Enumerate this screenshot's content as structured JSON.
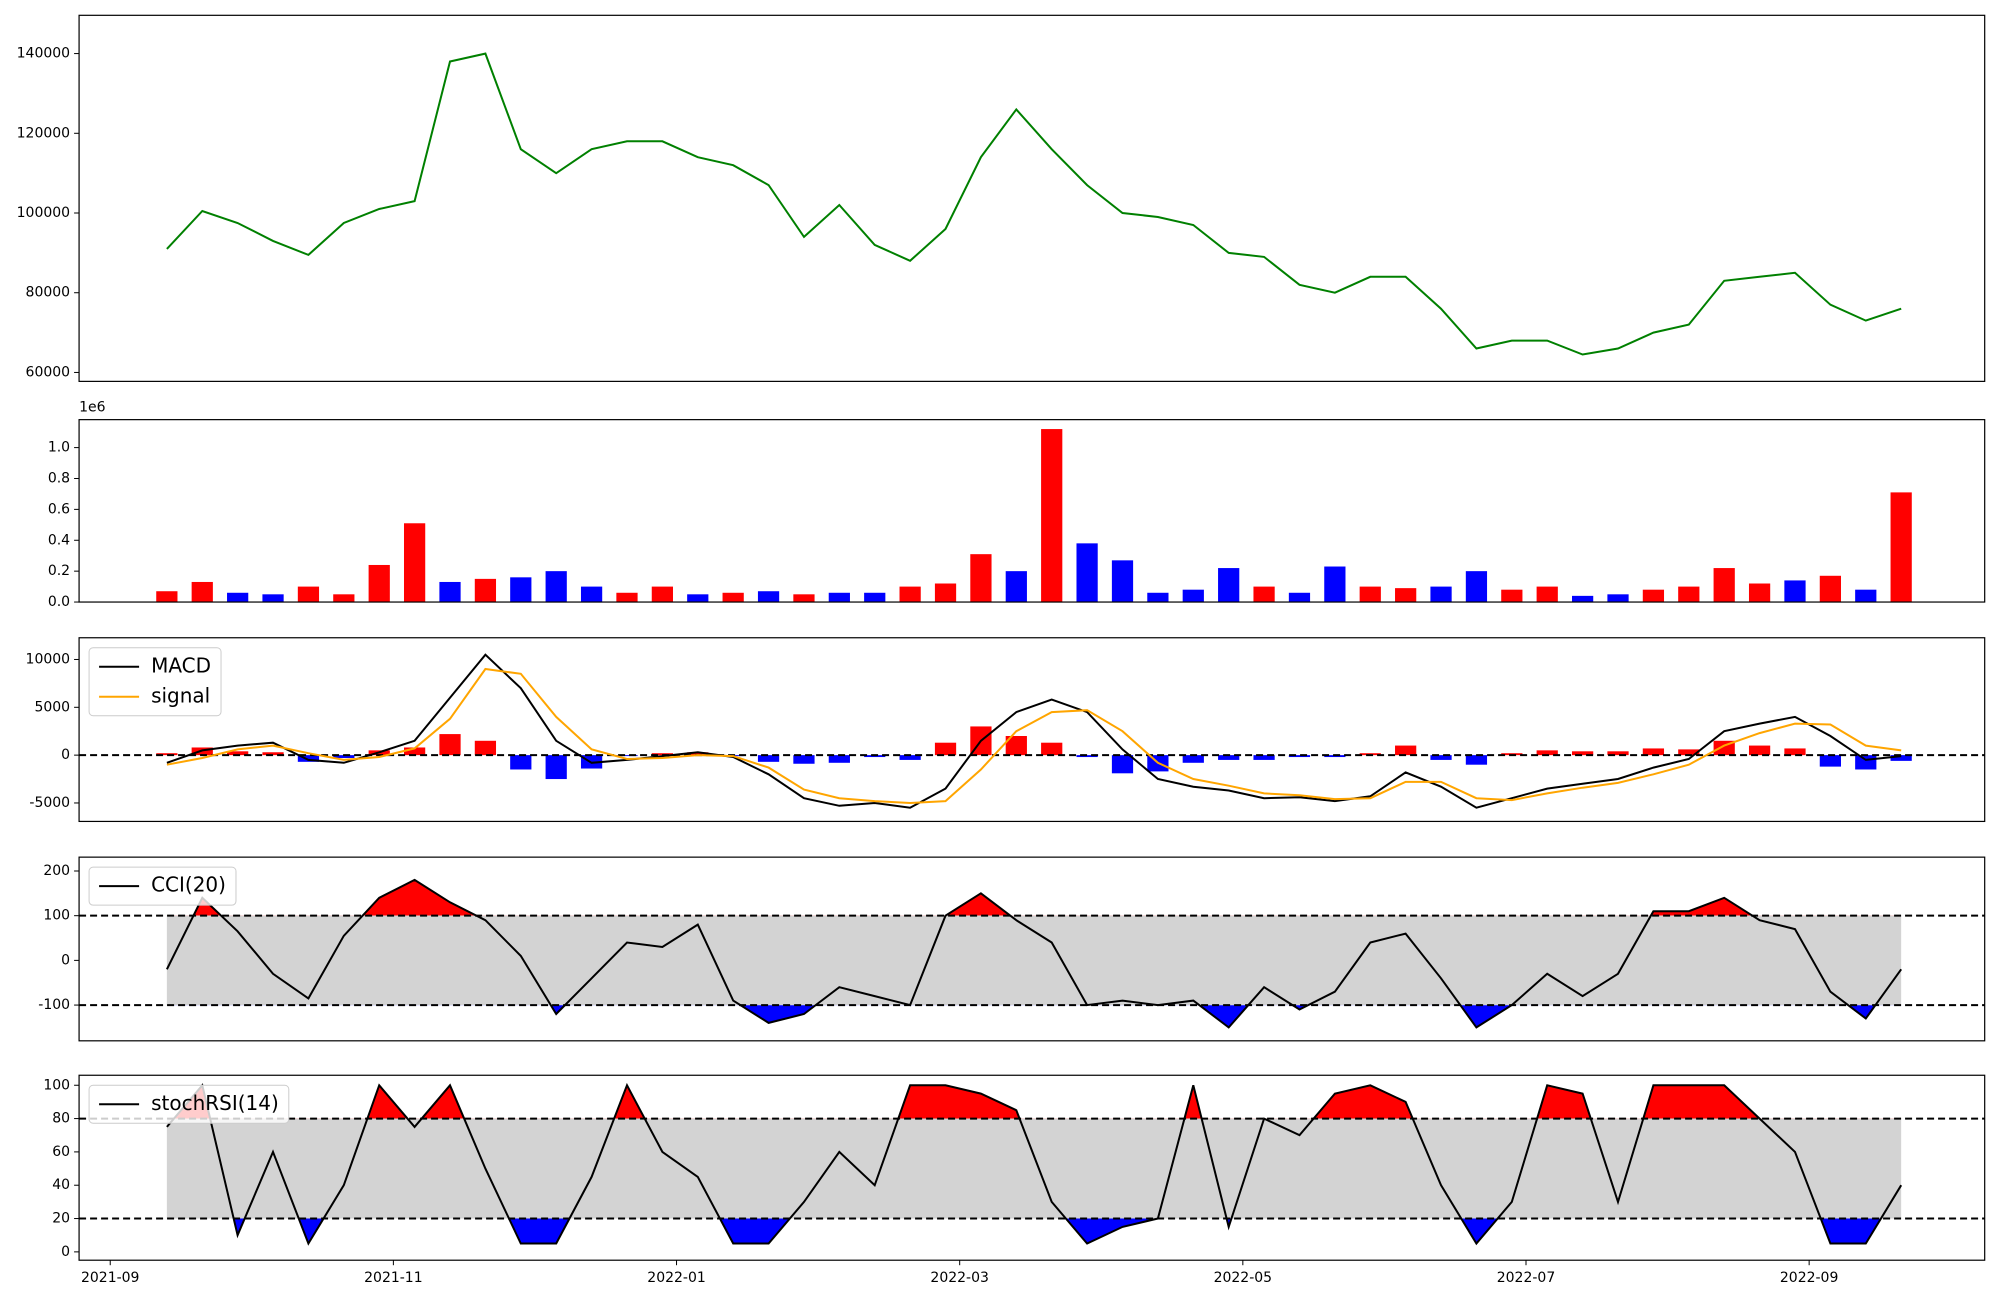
{
  "chart_data": [
    {
      "type": "line",
      "color": "#008000",
      "x": [
        0.4,
        0.65,
        0.9,
        1.15,
        1.4,
        1.65,
        1.9,
        2.15,
        2.4,
        2.65,
        2.9,
        3.15,
        3.4,
        3.65,
        3.9,
        4.15,
        4.4,
        4.65,
        4.9,
        5.15,
        5.4,
        5.65,
        5.9,
        6.15,
        6.4,
        6.65,
        6.9,
        7.15,
        7.4,
        7.65,
        7.9,
        8.15,
        8.4,
        8.65,
        8.9,
        9.15,
        9.4,
        9.65,
        9.9,
        10.15,
        10.4,
        10.65,
        10.9,
        11.15,
        11.4,
        11.65,
        11.9,
        12.15,
        12.4,
        12.65
      ],
      "values": [
        91000,
        100500,
        97500,
        93000,
        89500,
        97500,
        101000,
        103000,
        138000,
        140000,
        116000,
        110000,
        116000,
        118000,
        118000,
        114000,
        112000,
        107000,
        94000,
        102000,
        92000,
        88000,
        96000,
        114000,
        126000,
        116000,
        107000,
        100000,
        99000,
        97000,
        90000,
        89000,
        82000,
        80000,
        84000,
        84000,
        76000,
        66000,
        68000,
        68000,
        64500,
        66000,
        70000,
        72000,
        83000,
        84000,
        85000,
        77000,
        73000,
        76000
      ],
      "xlim": [
        -0.22,
        13.24
      ],
      "ylim": [
        57760,
        149600
      ],
      "yticks": [
        60000,
        80000,
        100000,
        120000,
        140000
      ]
    },
    {
      "type": "bar",
      "y_offset_label": "1e6",
      "x": [
        0.4,
        0.65,
        0.9,
        1.15,
        1.4,
        1.65,
        1.9,
        2.15,
        2.4,
        2.65,
        2.9,
        3.15,
        3.4,
        3.65,
        3.9,
        4.15,
        4.4,
        4.65,
        4.9,
        5.15,
        5.4,
        5.65,
        5.9,
        6.15,
        6.4,
        6.65,
        6.9,
        7.15,
        7.4,
        7.65,
        7.9,
        8.15,
        8.4,
        8.65,
        8.9,
        9.15,
        9.4,
        9.65,
        9.9,
        10.15,
        10.4,
        10.65,
        10.9,
        11.15,
        11.4,
        11.65,
        11.9,
        12.15,
        12.4,
        12.65
      ],
      "values": [
        70000,
        130000,
        60000,
        50000,
        100000,
        50000,
        240000,
        510000,
        130000,
        150000,
        160000,
        200000,
        100000,
        60000,
        100000,
        50000,
        60000,
        70000,
        50000,
        60000,
        60000,
        100000,
        120000,
        310000,
        200000,
        1120000,
        380000,
        270000,
        60000,
        80000,
        220000,
        100000,
        60000,
        230000,
        100000,
        90000,
        100000,
        200000,
        80000,
        100000,
        40000,
        50000,
        80000,
        100000,
        220000,
        120000,
        140000,
        170000,
        80000,
        710000
      ],
      "colors": [
        "#ff0000",
        "#ff0000",
        "#0000ff",
        "#0000ff",
        "#ff0000",
        "#ff0000",
        "#ff0000",
        "#ff0000",
        "#0000ff",
        "#ff0000",
        "#0000ff",
        "#0000ff",
        "#0000ff",
        "#ff0000",
        "#ff0000",
        "#0000ff",
        "#ff0000",
        "#0000ff",
        "#ff0000",
        "#0000ff",
        "#0000ff",
        "#ff0000",
        "#ff0000",
        "#ff0000",
        "#0000ff",
        "#ff0000",
        "#0000ff",
        "#0000ff",
        "#0000ff",
        "#0000ff",
        "#0000ff",
        "#ff0000",
        "#0000ff",
        "#0000ff",
        "#ff0000",
        "#ff0000",
        "#0000ff",
        "#0000ff",
        "#ff0000",
        "#ff0000",
        "#0000ff",
        "#0000ff",
        "#ff0000",
        "#ff0000",
        "#ff0000",
        "#ff0000",
        "#0000ff",
        "#ff0000",
        "#0000ff",
        "#ff0000"
      ],
      "xlim": [
        -0.22,
        13.24
      ],
      "ylim": [
        0,
        1181000
      ],
      "yticks": [
        {
          "value": 0,
          "label": "0.0"
        },
        {
          "value": 200000,
          "label": "0.2"
        },
        {
          "value": 400000,
          "label": "0.4"
        },
        {
          "value": 600000,
          "label": "0.6"
        },
        {
          "value": 800000,
          "label": "0.8"
        },
        {
          "value": 1000000,
          "label": "1.0"
        }
      ]
    },
    {
      "type": "macd",
      "legend": "upper left",
      "reference_line": 0,
      "x": [
        0.4,
        0.65,
        0.9,
        1.15,
        1.4,
        1.65,
        1.9,
        2.15,
        2.4,
        2.65,
        2.9,
        3.15,
        3.4,
        3.65,
        3.9,
        4.15,
        4.4,
        4.65,
        4.9,
        5.15,
        5.4,
        5.65,
        5.9,
        6.15,
        6.4,
        6.65,
        6.9,
        7.15,
        7.4,
        7.65,
        7.9,
        8.15,
        8.4,
        8.65,
        8.9,
        9.15,
        9.4,
        9.65,
        9.9,
        10.15,
        10.4,
        10.65,
        10.9,
        11.15,
        11.4,
        11.65,
        11.9,
        12.15,
        12.4,
        12.65
      ],
      "series": [
        {
          "name": "MACD",
          "color": "#000000",
          "values": [
            -800,
            500,
            1000,
            1300,
            -500,
            -800,
            300,
            1500,
            6000,
            10500,
            7000,
            1500,
            -800,
            -500,
            -100,
            300,
            -200,
            -2000,
            -4500,
            -5300,
            -5000,
            -5500,
            -3500,
            1500,
            4500,
            5800,
            4500,
            600,
            -2500,
            -3300,
            -3700,
            -4500,
            -4400,
            -4800,
            -4300,
            -1800,
            -3300,
            -5500,
            -4500,
            -3500,
            -3000,
            -2500,
            -1300,
            -400,
            2500,
            3300,
            4000,
            2000,
            -500,
            -100
          ]
        },
        {
          "name": "signal",
          "color": "#ffa500",
          "values": [
            -1000,
            -300,
            600,
            1000,
            200,
            -500,
            -200,
            700,
            3800,
            9000,
            8500,
            4000,
            600,
            -400,
            -300,
            0,
            -100,
            -1300,
            -3600,
            -4500,
            -4800,
            -5000,
            -4800,
            -1500,
            2500,
            4500,
            4700,
            2500,
            -800,
            -2500,
            -3200,
            -4000,
            -4200,
            -4600,
            -4500,
            -2800,
            -2800,
            -4500,
            -4700,
            -4000,
            -3400,
            -2900,
            -2000,
            -1000,
            1000,
            2300,
            3300,
            3200,
            1000,
            500
          ]
        }
      ],
      "histogram": {
        "positive_color": "#ff0000",
        "negative_color": "#0000ff",
        "values": [
          200,
          800,
          400,
          300,
          -700,
          -300,
          500,
          800,
          2200,
          1500,
          -1500,
          -2500,
          -1400,
          -100,
          200,
          300,
          -100,
          -700,
          -900,
          -800,
          -200,
          -500,
          1300,
          3000,
          2000,
          1300,
          -200,
          -1900,
          -1700,
          -800,
          -500,
          -500,
          -200,
          -200,
          200,
          1000,
          -500,
          -1000,
          200,
          500,
          400,
          400,
          700,
          600,
          1500,
          1000,
          700,
          -1200,
          -1500,
          -600
        ]
      },
      "xlim": [
        -0.22,
        13.24
      ],
      "ylim": [
        -6930,
        12270
      ],
      "yticks": [
        -5000,
        0,
        5000,
        10000
      ]
    },
    {
      "type": "oscillator",
      "legend": "upper left",
      "thresholds": [
        -100,
        100
      ],
      "band_color": "#d3d3d3",
      "upper_fill_color": "#ff0000",
      "lower_fill_color": "#0000ff",
      "x": [
        0.4,
        0.65,
        0.9,
        1.15,
        1.4,
        1.65,
        1.9,
        2.15,
        2.4,
        2.65,
        2.9,
        3.15,
        3.4,
        3.65,
        3.9,
        4.15,
        4.4,
        4.65,
        4.9,
        5.15,
        5.4,
        5.65,
        5.9,
        6.15,
        6.4,
        6.65,
        6.9,
        7.15,
        7.4,
        7.65,
        7.9,
        8.15,
        8.4,
        8.65,
        8.9,
        9.15,
        9.4,
        9.65,
        9.9,
        10.15,
        10.4,
        10.65,
        10.9,
        11.15,
        11.4,
        11.65,
        11.9,
        12.15,
        12.4,
        12.65
      ],
      "series": [
        {
          "name": "CCI(20)",
          "color": "#000000",
          "values": [
            -20,
            140,
            65,
            -30,
            -85,
            55,
            140,
            180,
            130,
            90,
            10,
            -120,
            -40,
            40,
            30,
            80,
            -90,
            -140,
            -120,
            -60,
            -80,
            -100,
            100,
            150,
            90,
            40,
            -100,
            -90,
            -100,
            -90,
            -150,
            -60,
            -110,
            -70,
            40,
            60,
            -40,
            -150,
            -100,
            -30,
            -80,
            -30,
            110,
            110,
            140,
            90,
            70,
            -70,
            -130,
            -20
          ]
        }
      ],
      "xlim": [
        -0.22,
        13.24
      ],
      "ylim": [
        -180,
        231
      ],
      "yticks": [
        -100,
        0,
        100,
        200
      ]
    },
    {
      "type": "oscillator",
      "legend": "upper left",
      "thresholds": [
        20,
        80
      ],
      "band_color": "#d3d3d3",
      "upper_fill_color": "#ff0000",
      "lower_fill_color": "#0000ff",
      "x": [
        0.4,
        0.65,
        0.9,
        1.15,
        1.4,
        1.65,
        1.9,
        2.15,
        2.4,
        2.65,
        2.9,
        3.15,
        3.4,
        3.65,
        3.9,
        4.15,
        4.4,
        4.65,
        4.9,
        5.15,
        5.4,
        5.65,
        5.9,
        6.15,
        6.4,
        6.65,
        6.9,
        7.15,
        7.4,
        7.65,
        7.9,
        8.15,
        8.4,
        8.65,
        8.9,
        9.15,
        9.4,
        9.65,
        9.9,
        10.15,
        10.4,
        10.65,
        10.9,
        11.15,
        11.4,
        11.65,
        11.9,
        12.15,
        12.4,
        12.65
      ],
      "series": [
        {
          "name": "stochRSI(14)",
          "color": "#000000",
          "values": [
            75,
            100,
            10,
            60,
            5,
            40,
            100,
            75,
            100,
            50,
            5,
            5,
            45,
            100,
            60,
            45,
            5,
            5,
            30,
            60,
            40,
            100,
            100,
            95,
            85,
            30,
            5,
            15,
            20,
            100,
            15,
            80,
            70,
            95,
            100,
            90,
            40,
            5,
            30,
            100,
            95,
            30,
            100,
            100,
            100,
            80,
            60,
            5,
            5,
            40
          ]
        }
      ],
      "xlim": [
        -0.22,
        13.24
      ],
      "ylim": [
        -5,
        106
      ],
      "yticks": [
        0,
        20,
        40,
        60,
        80,
        100
      ],
      "xticks": [
        {
          "value": 0,
          "label": "2021-09"
        },
        {
          "value": 2,
          "label": "2021-11"
        },
        {
          "value": 4,
          "label": "2022-01"
        },
        {
          "value": 6,
          "label": "2022-03"
        },
        {
          "value": 8,
          "label": "2022-05"
        },
        {
          "value": 10,
          "label": "2022-07"
        },
        {
          "value": 12,
          "label": "2022-09"
        }
      ]
    }
  ]
}
